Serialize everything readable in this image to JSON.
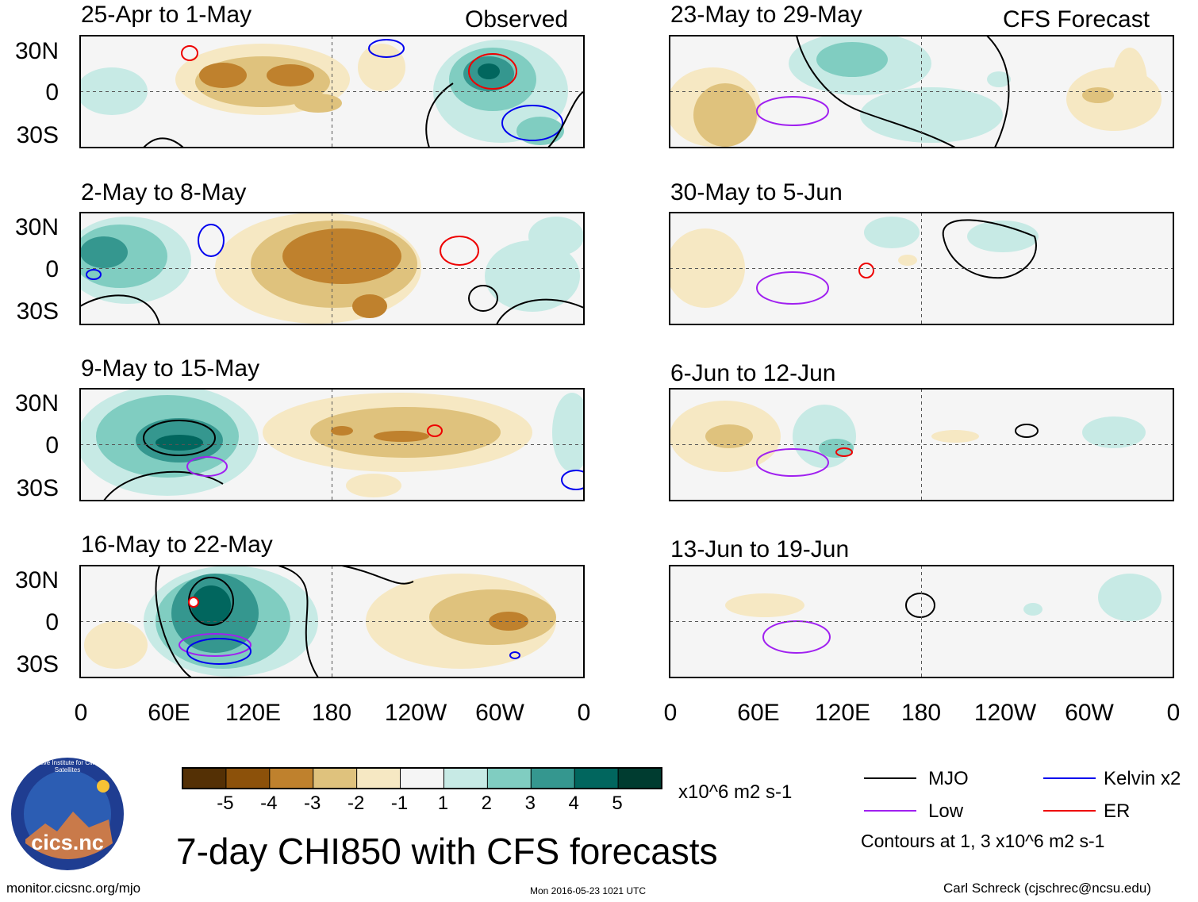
{
  "header": {
    "observed_label": "Observed",
    "forecast_label": "CFS Forecast"
  },
  "chart_data": {
    "type": "heatmap",
    "title": "7-day CHI850 with CFS forecasts",
    "variable": "CHI850",
    "units": "x10^6 m2 s-1",
    "x_axis": {
      "range": [
        0,
        360
      ],
      "tick_labels": [
        "0",
        "60E",
        "120E",
        "180",
        "120W",
        "60W",
        "0"
      ]
    },
    "y_axis": {
      "range": [
        -40,
        40
      ],
      "tick_labels": [
        "30N",
        "0",
        "30S"
      ]
    },
    "colorbar": {
      "tick_labels": [
        "-5",
        "-4",
        "-3",
        "-2",
        "-1",
        "1",
        "2",
        "3",
        "4",
        "5"
      ],
      "colors": [
        "#543005",
        "#8c510a",
        "#bf812d",
        "#dfc27d",
        "#f6e8c3",
        "#f5f5f5",
        "#c7eae5",
        "#80cdc1",
        "#35978f",
        "#01665e",
        "#003c30"
      ]
    },
    "legend": {
      "items": [
        {
          "label": "MJO",
          "color": "#000000"
        },
        {
          "label": "Kelvin x2",
          "color": "#0000ee"
        },
        {
          "label": "Low",
          "color": "#a020f0"
        },
        {
          "label": "ER",
          "color": "#ee0000"
        }
      ],
      "contours_note": "Contours at 1, 3 x10^6 m2 s-1"
    },
    "panels": [
      {
        "column": "Observed",
        "label": "25-Apr to 1-May"
      },
      {
        "column": "Observed",
        "label": "2-May to 8-May"
      },
      {
        "column": "Observed",
        "label": "9-May to 15-May"
      },
      {
        "column": "Observed",
        "label": "16-May to 22-May"
      },
      {
        "column": "CFS Forecast",
        "label": "23-May to 29-May"
      },
      {
        "column": "CFS Forecast",
        "label": "30-May to 5-Jun"
      },
      {
        "column": "CFS Forecast",
        "label": "6-Jun to 12-Jun"
      },
      {
        "column": "CFS Forecast",
        "label": "13-Jun to 19-Jun"
      }
    ]
  },
  "footer": {
    "logo_text": "cics.nc",
    "logo_ring_text": "Cooperative Institute for Climate and Satellites",
    "url": "monitor.cicsnc.org/mjo",
    "timestamp": "Mon 2016-05-23 1021 UTC",
    "credit": "Carl Schreck (cjschrec@ncsu.edu)"
  }
}
